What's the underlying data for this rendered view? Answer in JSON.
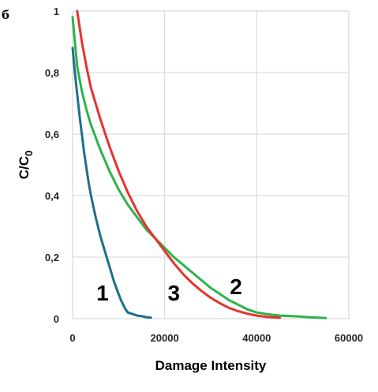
{
  "panel_letter": "б",
  "chart_data": {
    "type": "line",
    "xlabel": "Damage Intensity",
    "ylabel": "C/C",
    "ylabel_subscript": "0",
    "xlim": [
      0,
      60000
    ],
    "ylim": [
      0,
      1
    ],
    "x_ticks": [
      0,
      20000,
      40000,
      60000
    ],
    "x_tick_labels": [
      "0",
      "20000",
      "40000",
      "60000"
    ],
    "y_ticks": [
      0,
      0.2,
      0.4,
      0.6,
      0.8,
      1
    ],
    "y_tick_labels": [
      "0",
      "0,2",
      "0,4",
      "0,6",
      "0,8",
      "1"
    ],
    "grid": true,
    "series": [
      {
        "name": "1",
        "color": "#1f6e8c",
        "x": [
          0,
          500,
          1000,
          1500,
          2000,
          2500,
          3000,
          3500,
          4000,
          5000,
          6000,
          7000,
          8000,
          9000,
          10000,
          10500,
          11000,
          11500,
          12000,
          13000,
          14000,
          15000,
          16000,
          17000
        ],
        "y": [
          0.88,
          0.8,
          0.73,
          0.66,
          0.6,
          0.54,
          0.49,
          0.44,
          0.4,
          0.33,
          0.27,
          0.22,
          0.17,
          0.12,
          0.08,
          0.06,
          0.045,
          0.03,
          0.02,
          0.015,
          0.01,
          0.008,
          0.005,
          0.003
        ]
      },
      {
        "name": "2",
        "color": "#2db34a",
        "x": [
          0,
          1000,
          2000,
          3000,
          4000,
          6000,
          8000,
          10000,
          12000,
          14000,
          16000,
          18000,
          20000,
          22000,
          24000,
          26000,
          28000,
          30000,
          32000,
          34000,
          36000,
          38000,
          40000,
          42000,
          45000,
          48000,
          52000,
          55000
        ],
        "y": [
          0.98,
          0.82,
          0.74,
          0.68,
          0.63,
          0.55,
          0.48,
          0.42,
          0.37,
          0.33,
          0.29,
          0.26,
          0.23,
          0.2,
          0.175,
          0.15,
          0.125,
          0.1,
          0.08,
          0.06,
          0.045,
          0.03,
          0.02,
          0.015,
          0.01,
          0.008,
          0.004,
          0.002
        ]
      },
      {
        "name": "3",
        "color": "#e8322d",
        "x": [
          1000,
          2000,
          3000,
          4000,
          6000,
          8000,
          10000,
          12000,
          14000,
          16000,
          18000,
          20000,
          22000,
          24000,
          26000,
          28000,
          30000,
          32000,
          34000,
          36000,
          38000,
          40000,
          42000,
          45000
        ],
        "y": [
          1.0,
          0.9,
          0.82,
          0.75,
          0.65,
          0.56,
          0.48,
          0.41,
          0.35,
          0.3,
          0.26,
          0.22,
          0.18,
          0.145,
          0.115,
          0.09,
          0.068,
          0.05,
          0.035,
          0.024,
          0.016,
          0.01,
          0.006,
          0.003
        ]
      }
    ],
    "annotations": [
      {
        "text": "1",
        "x": 6500,
        "y": 0.085
      },
      {
        "text": "3",
        "x": 22000,
        "y": 0.085
      },
      {
        "text": "2",
        "x": 35500,
        "y": 0.105
      }
    ]
  }
}
